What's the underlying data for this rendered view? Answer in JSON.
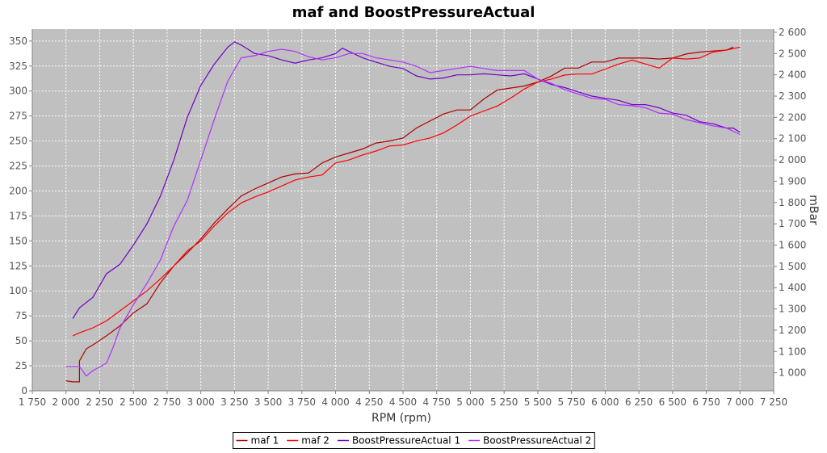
{
  "chart_data": {
    "type": "line",
    "title": "maf and BoostPressureActual",
    "xlabel": "RPM (rpm)",
    "ylabel_left": "",
    "ylabel_right": "mBar",
    "xlim": [
      1750,
      7250
    ],
    "ylim_left": [
      0,
      362
    ],
    "ylim_right": [
      915.3,
      2615
    ],
    "x_ticks": [
      1750,
      2000,
      2250,
      2500,
      2750,
      3000,
      3250,
      3500,
      3750,
      4000,
      4250,
      4500,
      4750,
      5000,
      5250,
      5500,
      5750,
      6000,
      6250,
      6500,
      6750,
      7000,
      7250
    ],
    "x_tick_labels": [
      "1 750",
      "2 000",
      "2 250",
      "2 500",
      "2 750",
      "3 000",
      "3 250",
      "3 500",
      "3 750",
      "4 000",
      "4 250",
      "4 500",
      "4 750",
      "5 000",
      "5 250",
      "5 500",
      "5 750",
      "6 000",
      "6 250",
      "6 500",
      "6 750",
      "7 000",
      "7 250"
    ],
    "y_left_ticks": [
      0,
      25,
      50,
      75,
      100,
      125,
      150,
      175,
      200,
      225,
      250,
      275,
      300,
      325,
      350
    ],
    "y_left_tick_labels": [
      "0",
      "25",
      "50",
      "75",
      "100",
      "125",
      "150",
      "175",
      "200",
      "225",
      "250",
      "275",
      "300",
      "325",
      "350"
    ],
    "y_right_ticks": [
      1000,
      1100,
      1200,
      1300,
      1400,
      1500,
      1600,
      1700,
      1800,
      1900,
      2000,
      2100,
      2200,
      2300,
      2400,
      2500,
      2600
    ],
    "y_right_tick_labels": [
      "1 000",
      "1 100",
      "1 200",
      "1 300",
      "1 400",
      "1 500",
      "1 600",
      "1 700",
      "1 800",
      "1 900",
      "2 000",
      "2 100",
      "2 200",
      "2 300",
      "2 400",
      "2 500",
      "2 600"
    ],
    "grid": true,
    "plot_background": "#c0c0c0",
    "legend_position": "bottom",
    "series": [
      {
        "name": "maf 1",
        "axis": "left",
        "color": "#b00000",
        "x": [
          2000,
          2050,
          2100,
          2100,
          2150,
          2200,
          2300,
          2400,
          2500,
          2600,
          2700,
          2800,
          2900,
          3000,
          3100,
          3200,
          3300,
          3400,
          3500,
          3600,
          3700,
          3800,
          3900,
          4000,
          4100,
          4200,
          4300,
          4400,
          4500,
          4600,
          4700,
          4800,
          4900,
          5000,
          5100,
          5200,
          5300,
          5400,
          5500,
          5600,
          5700,
          5800,
          5900,
          6000,
          6100,
          6200,
          6300,
          6400,
          6500,
          6600,
          6700,
          6800,
          6900,
          6950
        ],
        "y": [
          10,
          9,
          9,
          30,
          42,
          46,
          55,
          65,
          78,
          87,
          108,
          125,
          138,
          152,
          168,
          182,
          195,
          202,
          208,
          214,
          217,
          218,
          228,
          234,
          238,
          242,
          248,
          250,
          253,
          263,
          270,
          277,
          281,
          281,
          292,
          301,
          303,
          305,
          309,
          315,
          323,
          323,
          329,
          329,
          333,
          333,
          333,
          332,
          333,
          337,
          339,
          340,
          341,
          344
        ]
      },
      {
        "name": "maf 2",
        "axis": "left",
        "color": "#ff0000",
        "x": [
          2050,
          2100,
          2200,
          2300,
          2400,
          2500,
          2600,
          2700,
          2800,
          2900,
          3000,
          3100,
          3200,
          3300,
          3400,
          3500,
          3600,
          3700,
          3800,
          3900,
          4000,
          4100,
          4200,
          4300,
          4400,
          4500,
          4600,
          4700,
          4800,
          4900,
          5000,
          5100,
          5200,
          5300,
          5400,
          5500,
          5600,
          5700,
          5800,
          5900,
          6000,
          6100,
          6200,
          6300,
          6400,
          6500,
          6600,
          6700,
          6800,
          6900,
          7000
        ],
        "y": [
          55,
          58,
          63,
          70,
          80,
          90,
          100,
          112,
          125,
          140,
          150,
          165,
          178,
          188,
          194,
          199,
          205,
          211,
          214,
          216,
          228,
          231,
          236,
          240,
          245,
          246,
          250,
          253,
          258,
          266,
          275,
          280,
          285,
          293,
          302,
          309,
          312,
          316,
          317,
          317,
          322,
          327,
          331,
          327,
          323,
          333,
          332,
          333,
          339,
          341,
          344
        ]
      },
      {
        "name": "BoostPressureActual 1",
        "axis": "right",
        "color": "#7000c8",
        "x": [
          2050,
          2100,
          2200,
          2300,
          2400,
          2500,
          2600,
          2700,
          2800,
          2900,
          3000,
          3100,
          3200,
          3250,
          3300,
          3400,
          3500,
          3600,
          3700,
          3800,
          3900,
          4000,
          4050,
          4100,
          4200,
          4300,
          4400,
          4500,
          4600,
          4700,
          4800,
          4900,
          5000,
          5100,
          5200,
          5300,
          5400,
          5500,
          5600,
          5700,
          5800,
          5900,
          6000,
          6100,
          6200,
          6300,
          6400,
          6500,
          6600,
          6700,
          6800,
          6900,
          6950,
          7000
        ],
        "y": [
          1255,
          1305,
          1355,
          1465,
          1510,
          1600,
          1700,
          1830,
          2000,
          2200,
          2350,
          2450,
          2530,
          2555,
          2540,
          2500,
          2490,
          2470,
          2455,
          2470,
          2480,
          2500,
          2525,
          2510,
          2480,
          2460,
          2440,
          2430,
          2395,
          2380,
          2385,
          2400,
          2400,
          2405,
          2400,
          2395,
          2405,
          2380,
          2355,
          2340,
          2320,
          2300,
          2290,
          2280,
          2260,
          2260,
          2245,
          2220,
          2210,
          2180,
          2170,
          2150,
          2150,
          2130
        ]
      },
      {
        "name": "BoostPressureActual 2",
        "axis": "right",
        "color": "#b030ff",
        "x": [
          2000,
          2100,
          2150,
          2200,
          2300,
          2350,
          2400,
          2500,
          2600,
          2700,
          2800,
          2900,
          3000,
          3100,
          3200,
          3300,
          3400,
          3500,
          3600,
          3700,
          3800,
          3900,
          4000,
          4100,
          4200,
          4300,
          4400,
          4500,
          4600,
          4700,
          4800,
          4900,
          5000,
          5100,
          5200,
          5300,
          5400,
          5500,
          5600,
          5700,
          5800,
          5900,
          6000,
          6100,
          6200,
          6300,
          6400,
          6500,
          6600,
          6700,
          6800,
          6900,
          7000
        ],
        "y": [
          1030,
          1030,
          985,
          1010,
          1045,
          1120,
          1210,
          1320,
          1420,
          1530,
          1690,
          1810,
          2000,
          2190,
          2370,
          2480,
          2490,
          2510,
          2520,
          2510,
          2485,
          2470,
          2480,
          2500,
          2500,
          2480,
          2470,
          2460,
          2440,
          2410,
          2420,
          2430,
          2440,
          2430,
          2420,
          2420,
          2420,
          2380,
          2360,
          2330,
          2310,
          2290,
          2285,
          2260,
          2255,
          2245,
          2220,
          2215,
          2190,
          2175,
          2160,
          2150,
          2120
        ]
      }
    ]
  }
}
